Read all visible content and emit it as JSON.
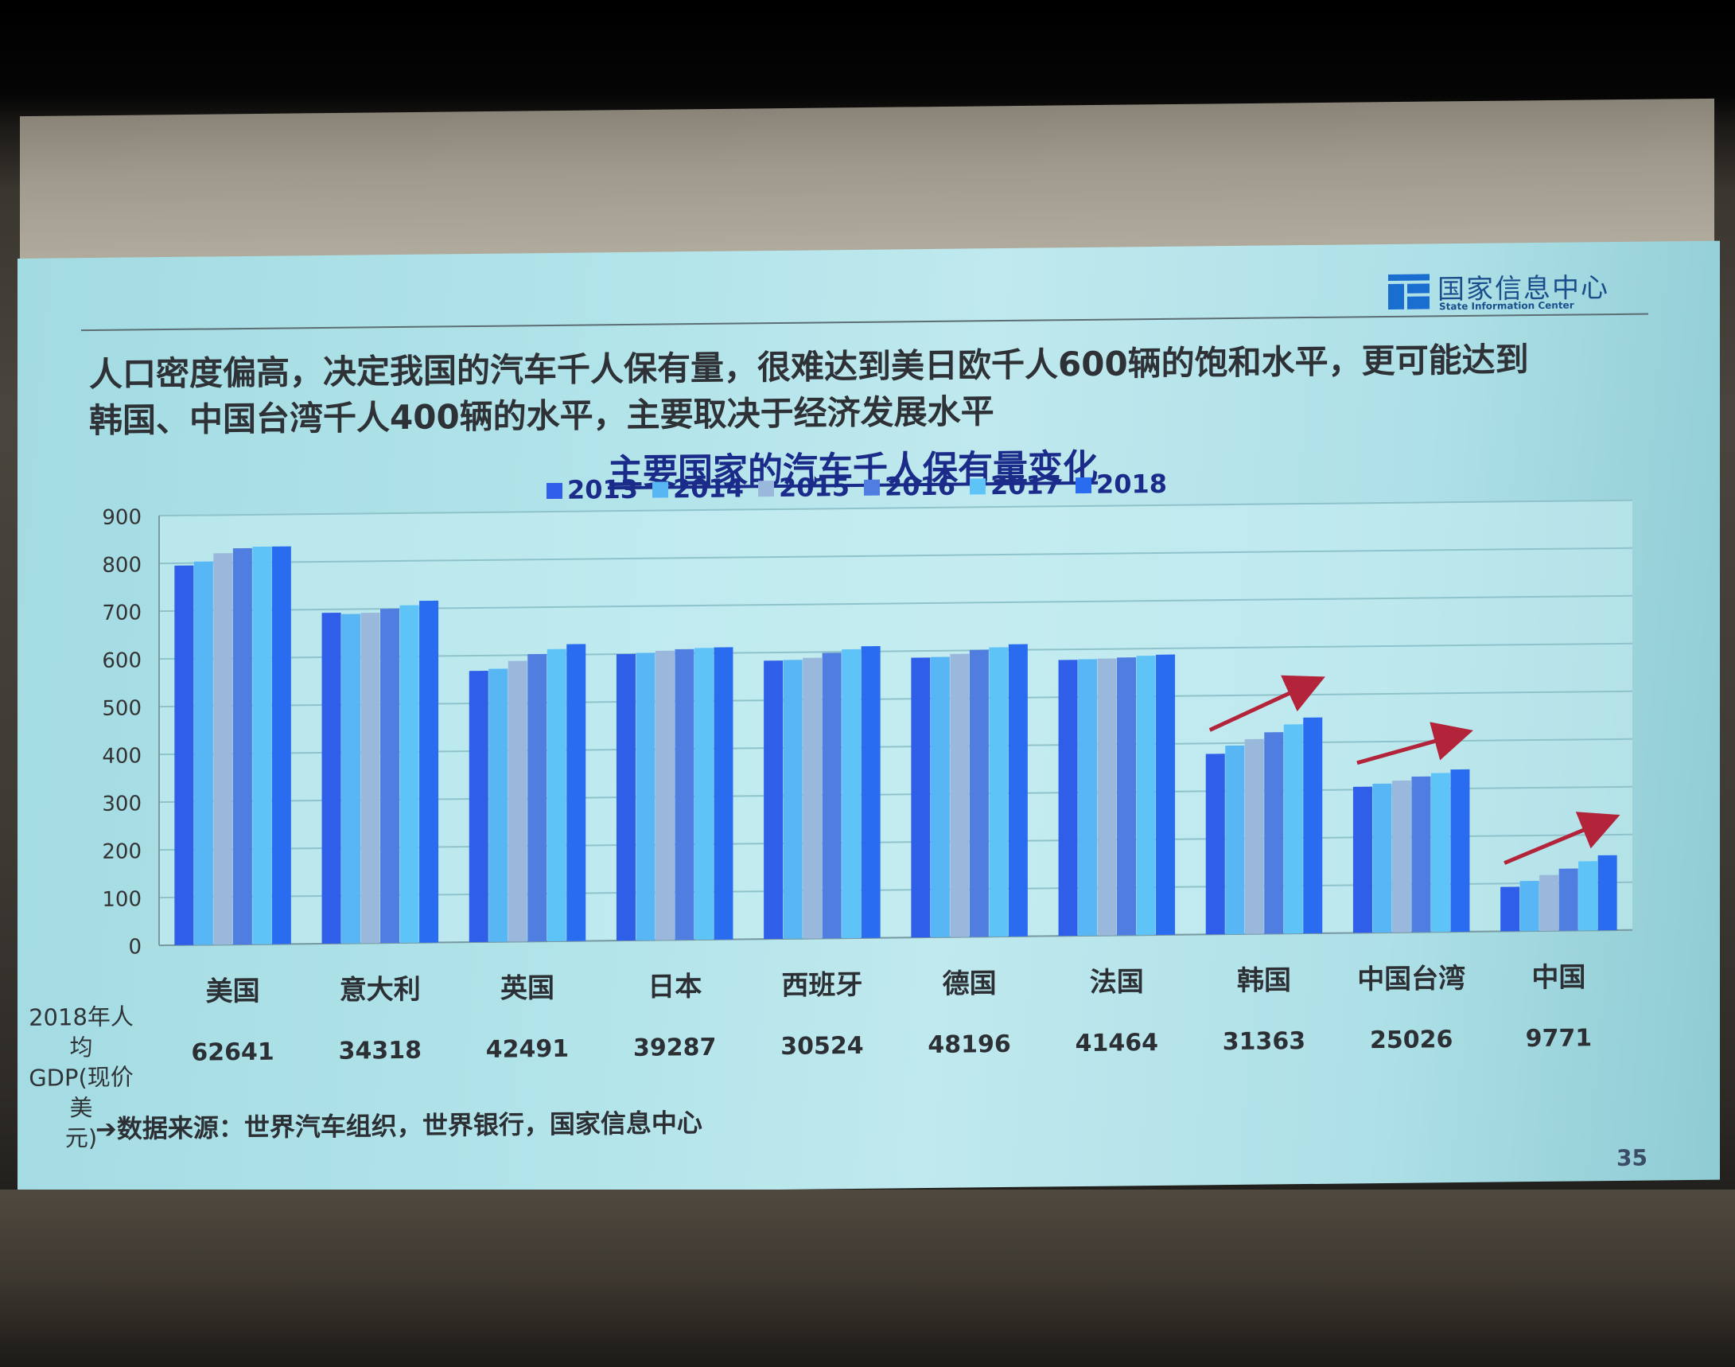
{
  "header": {
    "logo_cn": "国家信息中心",
    "logo_en": "State Information Center",
    "headline_line1": "人口密度偏高，决定我国的汽车千人保有量，很难达到美日欧千人600辆的饱和水平，更可能达到",
    "headline_line2": "韩国、中国台湾千人400辆的水平，主要取决于经济发展水平"
  },
  "gdp": {
    "label_line1": "2018年人均",
    "label_line2": "GDP(现价美",
    "label_line3": "元)"
  },
  "footer": {
    "source": "数据来源：世界汽车组织，世界银行，国家信息中心",
    "page": "35"
  },
  "chart_data": {
    "type": "bar",
    "title": "主要国家的汽车千人保有量变化",
    "categories": [
      "美国",
      "意大利",
      "英国",
      "日本",
      "西班牙",
      "德国",
      "法国",
      "韩国",
      "中国台湾",
      "中国"
    ],
    "gdp_2018": [
      "62641",
      "34318",
      "42491",
      "39287",
      "30524",
      "48196",
      "41464",
      "31363",
      "25026",
      "9771"
    ],
    "series": [
      {
        "name": "2013",
        "values": [
          795,
          693,
          568,
          600,
          583,
          586,
          578,
          378,
          306,
          93
        ]
      },
      {
        "name": "2014",
        "values": [
          803,
          690,
          572,
          602,
          584,
          587,
          579,
          395,
          312,
          105
        ]
      },
      {
        "name": "2015",
        "values": [
          820,
          692,
          588,
          606,
          588,
          593,
          580,
          408,
          318,
          117
        ]
      },
      {
        "name": "2016",
        "values": [
          830,
          700,
          602,
          609,
          598,
          601,
          582,
          422,
          326,
          130
        ]
      },
      {
        "name": "2017",
        "values": [
          833,
          707,
          612,
          611,
          605,
          606,
          585,
          438,
          333,
          145
        ]
      },
      {
        "name": "2018",
        "values": [
          833,
          716,
          622,
          612,
          611,
          612,
          587,
          452,
          340,
          157
        ]
      }
    ],
    "ylim": [
      0,
      900
    ],
    "yticks": [
      "0",
      "100",
      "200",
      "300",
      "400",
      "500",
      "600",
      "700",
      "800",
      "900"
    ],
    "grid": true,
    "legend": "top",
    "colors": [
      "#2f5ee8",
      "#58b6f5",
      "#9ab8dc",
      "#4f7de0",
      "#5ec3f7",
      "#2a6cf0"
    ],
    "annotations": "red trend arrows above 韩国, 中国台湾, 中国"
  }
}
